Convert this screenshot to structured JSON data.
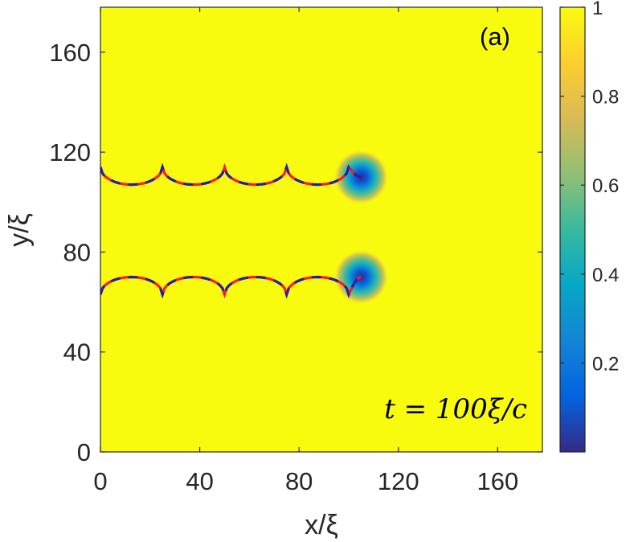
{
  "chart_data": {
    "type": "heatmap",
    "panel_label": "(a)",
    "time_annotation": "t = 100ξ/c",
    "xlabel": "x/ξ",
    "ylabel": "y/ξ",
    "xlim": [
      0,
      178
    ],
    "ylim": [
      0,
      178
    ],
    "x_ticks": [
      0,
      40,
      80,
      120,
      160
    ],
    "y_ticks": [
      0,
      40,
      80,
      120,
      160
    ],
    "x_tick_labels": [
      "0",
      "40",
      "80",
      "120",
      "160"
    ],
    "y_tick_labels": [
      "0",
      "40",
      "80",
      "120",
      "160"
    ],
    "background_value": 1,
    "colorbar": {
      "min": 0,
      "max": 1,
      "ticks": [
        0.2,
        0.4,
        0.6,
        0.8,
        1
      ],
      "tick_labels": [
        "0.2",
        "0.4",
        "0.6",
        "0.8",
        "1"
      ],
      "colormap": "parula",
      "colors": [
        "#352a87",
        "#0363e1",
        "#1485d4",
        "#06a7c6",
        "#38b99e",
        "#92bf73",
        "#d9ba56",
        "#fcce2e",
        "#f9fb0e"
      ]
    },
    "vortices": [
      {
        "name": "upper vortex",
        "x": 105,
        "y": 110,
        "core_value": 0
      },
      {
        "name": "lower vortex",
        "x": 105,
        "y": 70,
        "core_value": 0
      }
    ],
    "trajectories": [
      {
        "name": "upper trajectory",
        "cusps_x": [
          0,
          25,
          50,
          75,
          100
        ],
        "cusp_y": 114,
        "trough_y": 107,
        "end": [
          105,
          110
        ],
        "colors": {
          "solid": "#ff1a1a",
          "dashed": "#2020b0"
        }
      },
      {
        "name": "lower trajectory",
        "cusps_x": [
          0,
          25,
          50,
          75,
          100
        ],
        "cusp_y": 63,
        "trough_y": 70,
        "end": [
          105,
          70
        ],
        "colors": {
          "solid": "#ff1a1a",
          "dashed": "#2020b0"
        }
      }
    ]
  }
}
